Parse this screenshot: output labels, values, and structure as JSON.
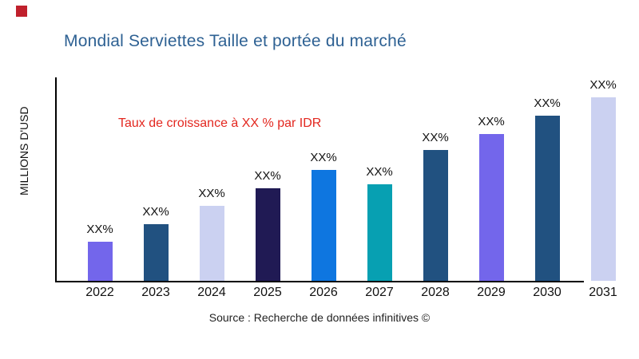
{
  "page": {
    "title": "Mondial Serviettes Taille et portée du marché",
    "title_color": "#2E6193",
    "annotation": "Taux de croissance à XX % par IDR",
    "annotation_color": "#E3271F",
    "source": "Source : Recherche de données infinitives ©",
    "marker_color": "#C0202C"
  },
  "chart_data": {
    "type": "bar",
    "title": "Mondial Serviettes Taille et portée du marché",
    "ylabel": "MILLIONS D'USD",
    "xlabel": "",
    "categories": [
      "2022",
      "2023",
      "2024",
      "2025",
      "2026",
      "2027",
      "2028",
      "2029",
      "2030",
      "2031"
    ],
    "values": [
      49,
      71,
      94,
      116,
      139,
      121,
      164,
      184,
      207,
      230
    ],
    "data_labels": [
      "XX%",
      "XX%",
      "XX%",
      "XX%",
      "XX%",
      "XX%",
      "XX%",
      "XX%",
      "XX%",
      "XX%"
    ],
    "bar_colors": [
      "#7366EB",
      "#215180",
      "#CBD1F1",
      "#201A54",
      "#0E76E0",
      "#07A0B2",
      "#215180",
      "#7366EB",
      "#215180",
      "#CBD1F1"
    ],
    "annotation": "Taux de croissance à XX % par IDR",
    "grid": false,
    "legend": false,
    "axis_color": "#000000",
    "ylim": [
      0,
      230
    ]
  }
}
